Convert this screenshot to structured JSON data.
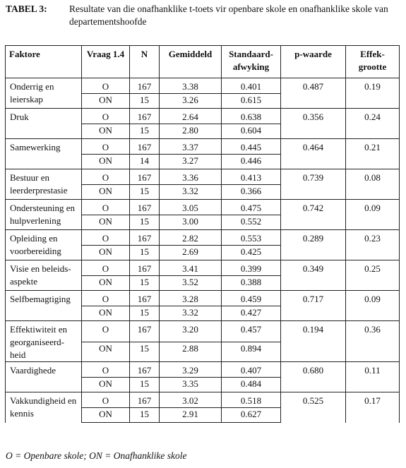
{
  "caption": {
    "label": "TABEL 3:",
    "text": "Resultate van die onafhanklike t-toets vir openbare skole en onafhanklike skole van departementshoofde"
  },
  "table": {
    "headers": {
      "faktore": "Faktore",
      "vraag": "Vraag 1.4",
      "n": "N",
      "gemiddeld": "Gemiddeld",
      "sd": "Standaard-afwyking",
      "p": "p-waarde",
      "effek": "Effek-grootte"
    },
    "groups": [
      {
        "factor": "Onderrig en leierskap",
        "rows": [
          {
            "vraag": "O",
            "n": "167",
            "mean": "3.38",
            "sd": "0.401"
          },
          {
            "vraag": "ON",
            "n": "15",
            "mean": "3.26",
            "sd": "0.615"
          }
        ],
        "p": "0.487",
        "effect": "0.19"
      },
      {
        "factor": "Druk",
        "rows": [
          {
            "vraag": "O",
            "n": "167",
            "mean": "2.64",
            "sd": "0.638"
          },
          {
            "vraag": "ON",
            "n": "15",
            "mean": "2.80",
            "sd": "0.604"
          }
        ],
        "p": "0.356",
        "effect": "0.24"
      },
      {
        "factor": "Samewerking",
        "rows": [
          {
            "vraag": "O",
            "n": "167",
            "mean": "3.37",
            "sd": "0.445"
          },
          {
            "vraag": "ON",
            "n": "14",
            "mean": "3.27",
            "sd": "0.446"
          }
        ],
        "p": "0.464",
        "effect": "0.21"
      },
      {
        "factor": "Bestuur en leerderprestasie",
        "rows": [
          {
            "vraag": "O",
            "n": "167",
            "mean": "3.36",
            "sd": "0.413"
          },
          {
            "vraag": "ON",
            "n": "15",
            "mean": "3.32",
            "sd": "0.366"
          }
        ],
        "p": "0.739",
        "effect": "0.08"
      },
      {
        "factor": "Ondersteuning en hulpverlening",
        "rows": [
          {
            "vraag": "O",
            "n": "167",
            "mean": "3.05",
            "sd": "0.475"
          },
          {
            "vraag": "ON",
            "n": "15",
            "mean": "3.00",
            "sd": "0.552"
          }
        ],
        "p": "0.742",
        "effect": "0.09"
      },
      {
        "factor": "Opleiding en voorbereiding",
        "rows": [
          {
            "vraag": "O",
            "n": "167",
            "mean": "2.82",
            "sd": "0.553"
          },
          {
            "vraag": "ON",
            "n": "15",
            "mean": "2.69",
            "sd": "0.425"
          }
        ],
        "p": "0.289",
        "effect": "0.23"
      },
      {
        "factor": "Visie en beleids-aspekte",
        "rows": [
          {
            "vraag": "O",
            "n": "167",
            "mean": "3.41",
            "sd": "0.399"
          },
          {
            "vraag": "ON",
            "n": "15",
            "mean": "3.52",
            "sd": "0.388"
          }
        ],
        "p": "0.349",
        "effect": "0.25"
      },
      {
        "factor": "Selfbemagtiging",
        "rows": [
          {
            "vraag": "O",
            "n": "167",
            "mean": "3.28",
            "sd": "0.459"
          },
          {
            "vraag": "ON",
            "n": "15",
            "mean": "3.32",
            "sd": "0.427"
          }
        ],
        "p": "0.717",
        "effect": "0.09"
      },
      {
        "factor": "Effektiwiteit en georganiseerd-heid",
        "rows": [
          {
            "vraag": "O",
            "n": "167",
            "mean": "3.20",
            "sd": "0.457"
          },
          {
            "vraag": "ON",
            "n": "15",
            "mean": "2.88",
            "sd": "0.894"
          }
        ],
        "p": "0.194",
        "effect": "0.36"
      },
      {
        "factor": "Vaardighede",
        "rows": [
          {
            "vraag": "O",
            "n": "167",
            "mean": "3.29",
            "sd": "0.407"
          },
          {
            "vraag": "ON",
            "n": "15",
            "mean": "3.35",
            "sd": "0.484"
          }
        ],
        "p": "0.680",
        "effect": "0.11"
      },
      {
        "factor": "Vakkundigheid en kennis",
        "rows": [
          {
            "vraag": "O",
            "n": "167",
            "mean": "3.02",
            "sd": "0.518"
          },
          {
            "vraag": "ON",
            "n": "15",
            "mean": "2.91",
            "sd": "0.627"
          }
        ],
        "p": "0.525",
        "effect": "0.17"
      }
    ]
  },
  "footnote": "O = Openbare skole; ON = Onafhanklike skole"
}
